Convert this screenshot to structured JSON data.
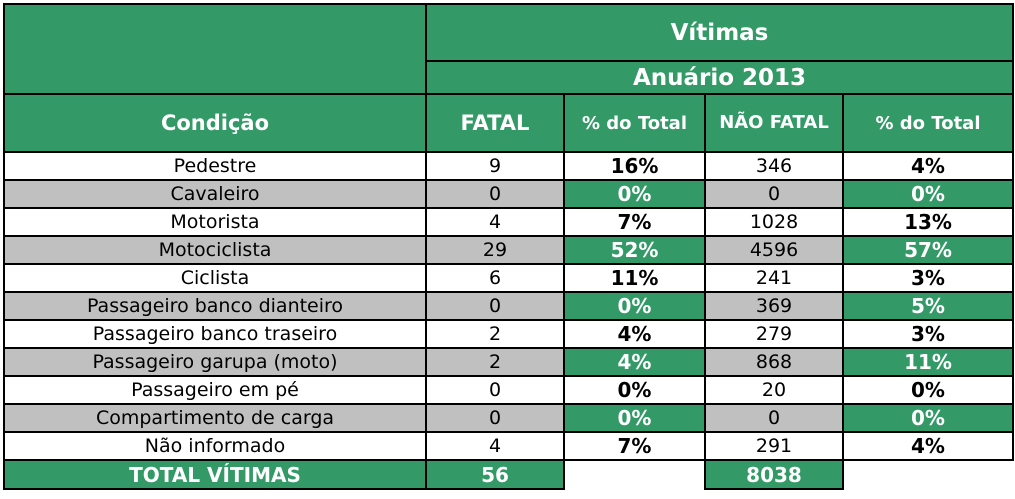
{
  "header": {
    "group_title": "Vítimas",
    "subtitle": "Anuário 2013",
    "columns": [
      "Condição",
      "FATAL",
      "% do Total",
      "NÃO FATAL",
      "% do Total"
    ]
  },
  "rows": [
    {
      "condicao": "Pedestre",
      "fatal": "9",
      "pct_fatal": "16%",
      "nao_fatal": "346",
      "pct_nao_fatal": "4%"
    },
    {
      "condicao": "Cavaleiro",
      "fatal": "0",
      "pct_fatal": "0%",
      "nao_fatal": "0",
      "pct_nao_fatal": "0%"
    },
    {
      "condicao": "Motorista",
      "fatal": "4",
      "pct_fatal": "7%",
      "nao_fatal": "1028",
      "pct_nao_fatal": "13%"
    },
    {
      "condicao": "Motociclista",
      "fatal": "29",
      "pct_fatal": "52%",
      "nao_fatal": "4596",
      "pct_nao_fatal": "57%"
    },
    {
      "condicao": "Ciclista",
      "fatal": "6",
      "pct_fatal": "11%",
      "nao_fatal": "241",
      "pct_nao_fatal": "3%"
    },
    {
      "condicao": "Passageiro banco dianteiro",
      "fatal": "0",
      "pct_fatal": "0%",
      "nao_fatal": "369",
      "pct_nao_fatal": "5%"
    },
    {
      "condicao": "Passageiro banco traseiro",
      "fatal": "2",
      "pct_fatal": "4%",
      "nao_fatal": "279",
      "pct_nao_fatal": "3%"
    },
    {
      "condicao": "Passageiro garupa (moto)",
      "fatal": "2",
      "pct_fatal": "4%",
      "nao_fatal": "868",
      "pct_nao_fatal": "11%"
    },
    {
      "condicao": "Passageiro em pé",
      "fatal": "0",
      "pct_fatal": "0%",
      "nao_fatal": "20",
      "pct_nao_fatal": "0%"
    },
    {
      "condicao": "Compartimento de carga",
      "fatal": "0",
      "pct_fatal": "0%",
      "nao_fatal": "0",
      "pct_nao_fatal": "0%"
    },
    {
      "condicao": "Não informado",
      "fatal": "4",
      "pct_fatal": "7%",
      "nao_fatal": "291",
      "pct_nao_fatal": "4%"
    }
  ],
  "totals": {
    "label": "TOTAL VÍTIMAS",
    "fatal": "56",
    "nao_fatal": "8038"
  },
  "colors": {
    "green": "#339966",
    "gray": "#c0c0c0",
    "white": "#ffffff"
  }
}
